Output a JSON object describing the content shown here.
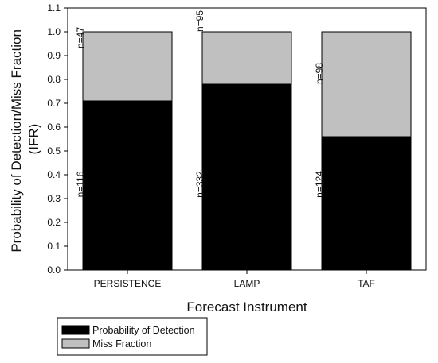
{
  "chart_data": {
    "type": "bar",
    "stacked": true,
    "categories": [
      "PERSISTENCE",
      "LAMP",
      "TAF"
    ],
    "series": [
      {
        "name": "Probability of Detection",
        "color": "#000000",
        "values": [
          0.71,
          0.78,
          0.56
        ],
        "counts": [
          "n=116",
          "n=332",
          "n=124"
        ]
      },
      {
        "name": "Miss Fraction",
        "color": "#c0c0c0",
        "values": [
          0.29,
          0.22,
          0.44
        ],
        "counts": [
          "n=47",
          "n=95",
          "n=98"
        ]
      }
    ],
    "xlabel": "Forecast Instrument",
    "ylabel_lines": [
      "Probability of Detection/Miss Fraction",
      "(IFR)"
    ],
    "ylim": [
      0,
      1.1
    ],
    "yticks": [
      "0.0",
      "0.1",
      "0.2",
      "0.3",
      "0.4",
      "0.5",
      "0.6",
      "0.7",
      "0.8",
      "0.9",
      "1.0",
      "1.1"
    ],
    "grid": false,
    "legend_placement": "bottom-left"
  }
}
